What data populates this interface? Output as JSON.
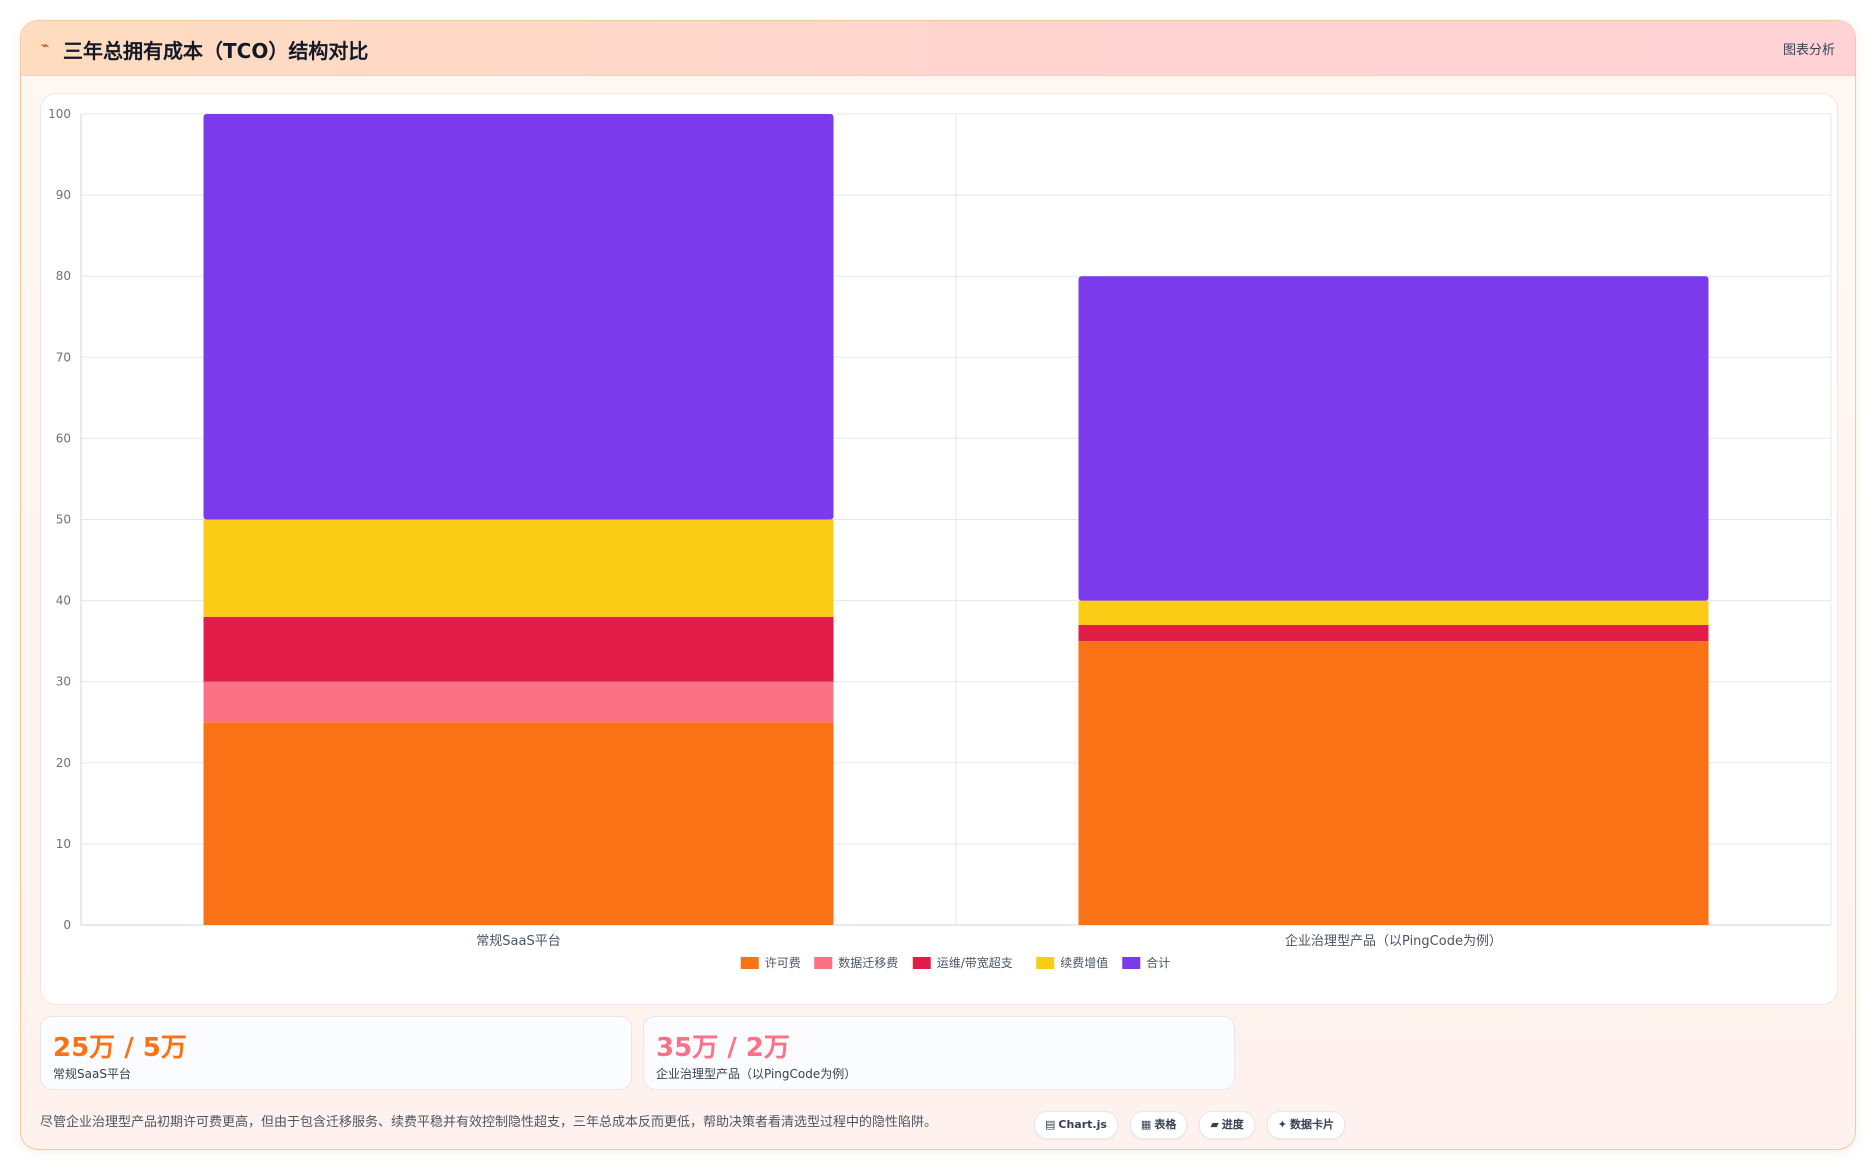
{
  "header": {
    "icon": "chart-icon",
    "title": "三年总拥有成本（TCO）结构对比",
    "tag": "图表分析"
  },
  "chart_data": {
    "type": "bar",
    "stacked": true,
    "categories": [
      "常规SaaS平台",
      "企业治理型产品（以PingCode为例）"
    ],
    "series": [
      {
        "name": "许可费",
        "color": "#f97316",
        "values": [
          25,
          35
        ]
      },
      {
        "name": "数据迁移费",
        "color": "#fb7185",
        "values": [
          5,
          0
        ]
      },
      {
        "name": "运维/带宽超支",
        "color": "#e11d48",
        "values": [
          8,
          2
        ]
      },
      {
        "name": "续费增值",
        "color": "#facc15",
        "values": [
          12,
          3
        ]
      },
      {
        "name": "合计",
        "color": "#7c3aed",
        "values": [
          50,
          40
        ]
      }
    ],
    "ylim": [
      0,
      100
    ],
    "yticks": [
      0,
      10,
      20,
      30,
      40,
      50,
      60,
      70,
      80,
      90,
      100
    ],
    "grid": true,
    "legend": "bottom-center",
    "title": "",
    "xlabel": "",
    "ylabel": ""
  },
  "stats": [
    {
      "value": "25万 / 5万",
      "label": "常规SaaS平台",
      "color": "#f97316"
    },
    {
      "value": "35万 / 2万",
      "label": "企业治理型产品（以PingCode为例）",
      "color": "#fb7185"
    }
  ],
  "footer": {
    "note": "尽管企业治理型产品初期许可费更高，但由于包含迁移服务、续费平稳并有效控制隐性超支，三年总成本反而更低，帮助决策者看清选型过程中的隐性陷阱。",
    "chips": [
      {
        "icon": "▤",
        "icon_name": "chart-icon",
        "label": "Chart.js"
      },
      {
        "icon": "▦",
        "icon_name": "table-icon",
        "label": "表格"
      },
      {
        "icon": "▰",
        "icon_name": "progress-icon",
        "label": "进度"
      },
      {
        "icon": "✦",
        "icon_name": "sparkle-icon",
        "label": "数据卡片"
      }
    ]
  }
}
